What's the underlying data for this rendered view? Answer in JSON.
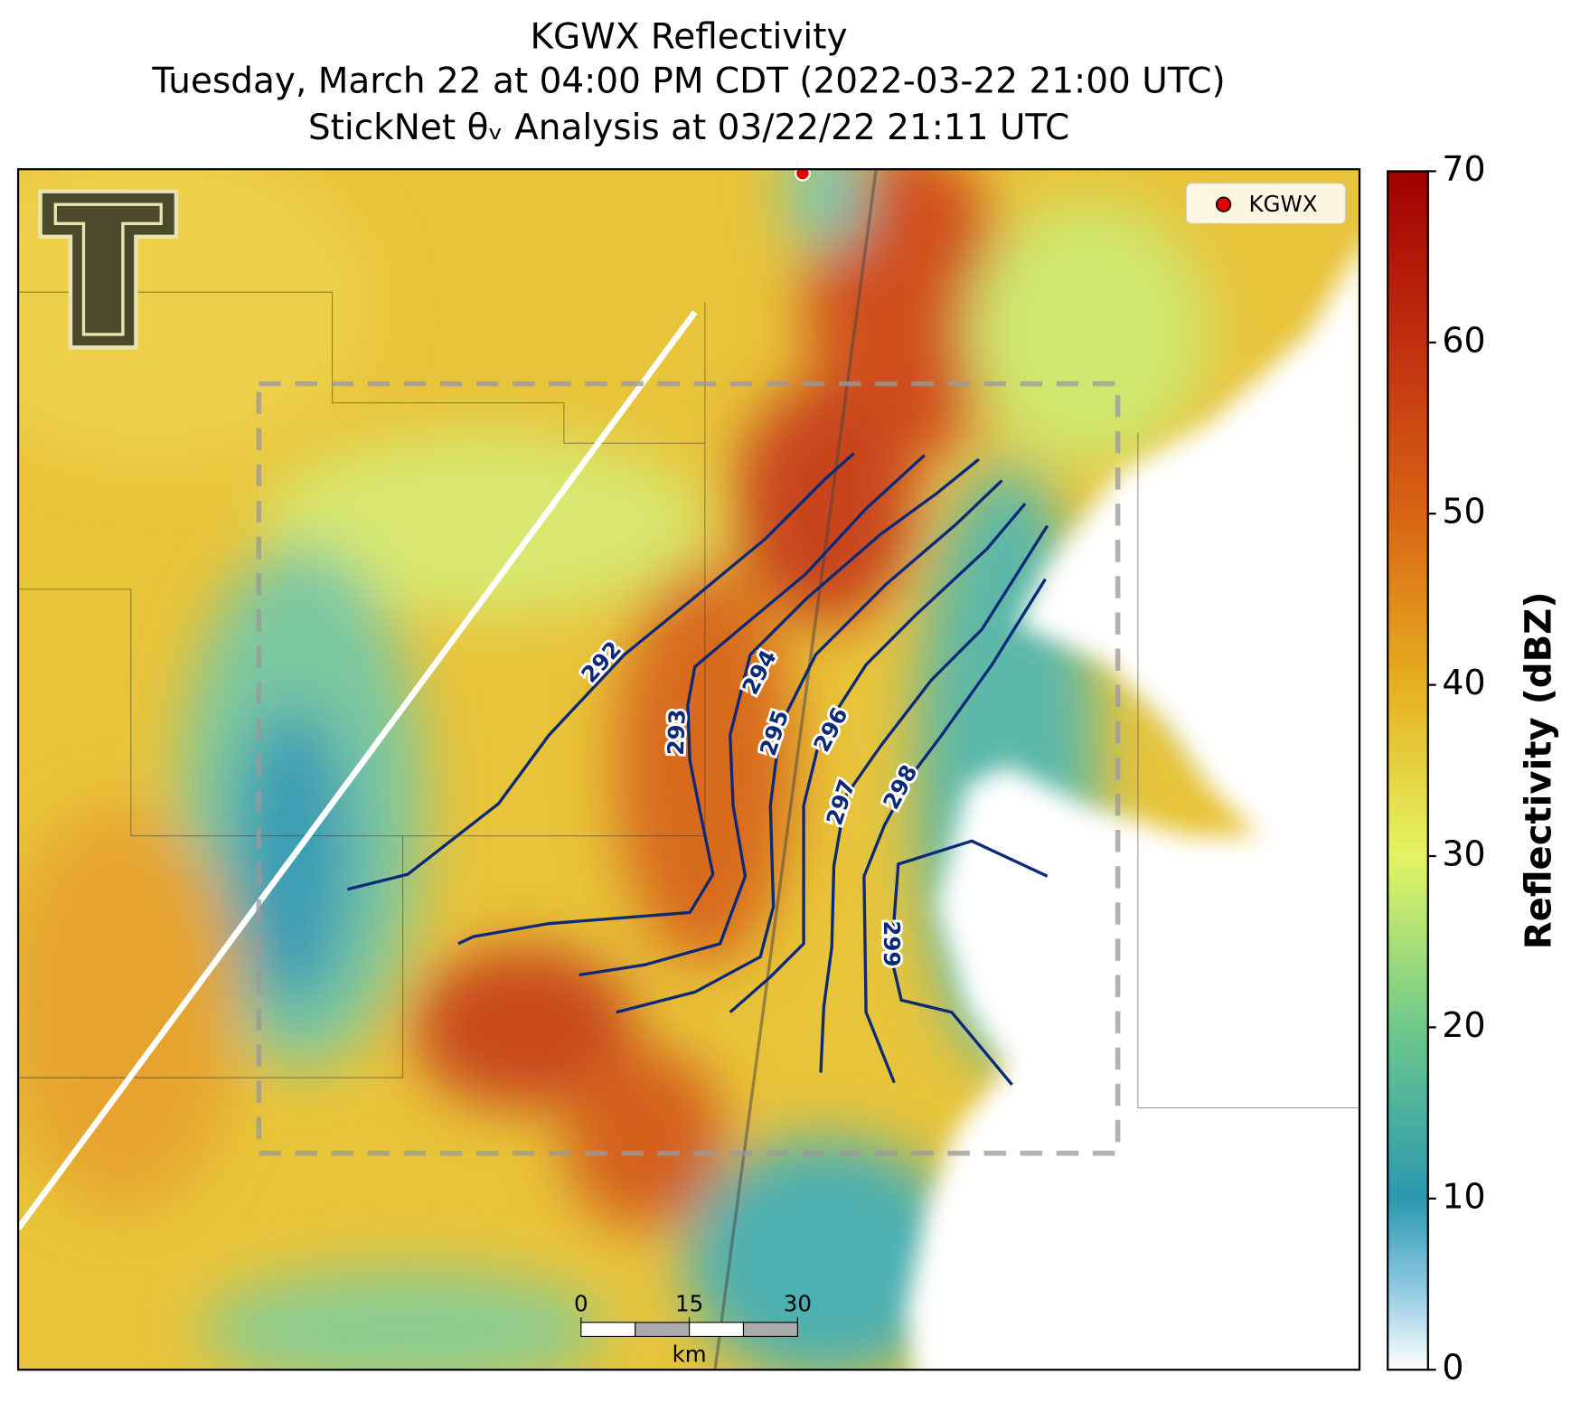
{
  "title_lines": [
    "KGWX Reflectivity",
    "Tuesday, March 22 at 04:00 PM CDT (2022-03-22 21:00 UTC)",
    "StickNet θᵥ Analysis at 03/22/22 21:11 UTC"
  ],
  "legend": {
    "label": "KGWX",
    "color": "#e00000"
  },
  "contours": {
    "color": "#0d2a78",
    "levels": [
      292,
      293,
      294,
      295,
      296,
      297,
      298,
      299
    ]
  },
  "colorbar": {
    "label": "Reflectivity (dBZ)",
    "lim": [
      0,
      70
    ],
    "ticks": [
      0,
      10,
      20,
      30,
      40,
      50,
      60,
      70
    ]
  },
  "scale_bar": {
    "ticks": [
      0,
      15,
      30
    ],
    "unit": "km"
  }
}
